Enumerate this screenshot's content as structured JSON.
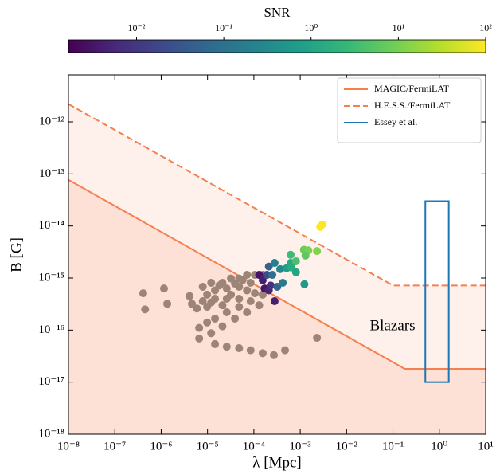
{
  "chart_data": {
    "type": "scatter",
    "xlabel": "λ [Mpc]",
    "ylabel": "B [G]",
    "xscale": "log",
    "yscale": "log",
    "xlim": [
      1e-08,
      10
    ],
    "ylim": [
      1e-18,
      8e-12
    ],
    "xticks": [
      {
        "value": 1e-08,
        "label": "10⁻⁸"
      },
      {
        "value": 1e-07,
        "label": "10⁻⁷"
      },
      {
        "value": 1e-06,
        "label": "10⁻⁶"
      },
      {
        "value": 1e-05,
        "label": "10⁻⁵"
      },
      {
        "value": 0.0001,
        "label": "10⁻⁴"
      },
      {
        "value": 0.001,
        "label": "10⁻³"
      },
      {
        "value": 0.01,
        "label": "10⁻²"
      },
      {
        "value": 0.1,
        "label": "10⁻¹"
      },
      {
        "value": 1,
        "label": "10⁰"
      },
      {
        "value": 10,
        "label": "10¹"
      }
    ],
    "yticks": [
      {
        "value": 1e-18,
        "label": "10⁻¹⁸"
      },
      {
        "value": 1e-17,
        "label": "10⁻¹⁷"
      },
      {
        "value": 1e-16,
        "label": "10⁻¹⁶"
      },
      {
        "value": 1e-15,
        "label": "10⁻¹⁵"
      },
      {
        "value": 1e-14,
        "label": "10⁻¹⁴"
      },
      {
        "value": 1e-13,
        "label": "10⁻¹³"
      },
      {
        "value": 1e-12,
        "label": "10⁻¹²"
      }
    ],
    "colorbar": {
      "label": "SNR",
      "colormap": "viridis",
      "scale": "log",
      "clim": [
        0.00166,
        100
      ],
      "ticks": [
        {
          "value": 0.01,
          "label": "10⁻²"
        },
        {
          "value": 0.1,
          "label": "10⁻¹"
        },
        {
          "value": 1,
          "label": "10⁰"
        },
        {
          "value": 10,
          "label": "10¹"
        },
        {
          "value": 100,
          "label": "10²"
        }
      ]
    },
    "legend": "upper right",
    "lines": [
      {
        "name": "MAGIC/FermiLAT",
        "color": "#f47f4f",
        "dash": "solid",
        "fill": "#fde1d7",
        "x": [
          1e-08,
          0.18,
          10
        ],
        "y": [
          7.7e-14,
          1.8e-17,
          1.8e-17
        ]
      },
      {
        "name": "H.E.S.S./FermiLAT",
        "color": "#f47f4f",
        "dash": "dashed",
        "fill": "#fef0eb",
        "x": [
          1e-08,
          0.1,
          10
        ],
        "y": [
          2.2e-12,
          7.2e-16,
          7.2e-16
        ]
      }
    ],
    "rect": {
      "name": "Essey et al.",
      "color": "#1f77b4",
      "x": [
        0.5,
        1.6
      ],
      "y": [
        1e-17,
        3e-14
      ]
    },
    "annotation": "Blazars",
    "series": [
      {
        "color": "#9c8477",
        "x": [
          4.1e-07,
          1.15e-06,
          4.5e-07,
          1.35e-06,
          4.1e-06,
          4.6e-06,
          5.9e-06,
          0.0023,
          0.00047,
          0.00027,
          7.9e-06,
          1.2e-05,
          2.1e-05,
          3.2e-05,
          4.8e-05,
          7.1e-05,
          0.000105,
          0.000155,
          9.8e-06,
          1.45e-05,
          2.6e-05,
          4.8e-05,
          8.5e-05,
          7.9e-06,
          1.45e-05,
          3.2e-05,
          7.1e-05,
          9.8e-06,
          2.1e-05,
          4.8e-05,
          0.000105,
          6.6e-06,
          9.8e-06,
          1.45e-05,
          2.6e-05,
          4.8e-05,
          8.5e-05,
          0.000155,
          6.6e-06,
          1.2e-05,
          2.1e-05,
          3.9e-05,
          7.1e-05,
          0.00013,
          1.45e-05,
          2.6e-05,
          4.8e-05,
          8.5e-05,
          0.000155,
          1.8e-05,
          3.9e-05,
          5.7e-05,
          1.2e-05,
          2.6e-05
        ],
        "y": [
          5.1e-16,
          6.3e-16,
          2.5e-16,
          3.2e-16,
          4.5e-16,
          3.2e-16,
          2.6e-16,
          7.1e-17,
          4.1e-17,
          3.3e-17,
          6.8e-16,
          8.1e-16,
          8.1e-16,
          9.8e-16,
          9.8e-16,
          1.15e-15,
          1.15e-15,
          1.15e-15,
          4.8e-16,
          5.8e-16,
          6.3e-16,
          6.8e-16,
          8.1e-16,
          3.6e-16,
          4e-16,
          4.8e-16,
          5.8e-16,
          2.8e-16,
          3e-16,
          4e-16,
          5.1e-16,
          1.1e-16,
          1.4e-16,
          1.66e-16,
          2.2e-16,
          2.8e-16,
          3.6e-16,
          4.8e-16,
          6.9e-17,
          8.7e-17,
          1.18e-16,
          1.66e-16,
          2.2e-16,
          3e-16,
          5.4e-17,
          4.8e-17,
          4.5e-17,
          4.1e-17,
          3.6e-17,
          7.2e-16,
          7.8e-16,
          9.1e-16,
          3.4e-16,
          4e-16
        ]
      },
      {
        "x": [
          0.00013,
          0.000155,
          0.00017,
          0.00021,
          0.00023,
          0.00028,
          0.00019,
          0.00021,
          0.00025,
          0.00028,
          0.00032,
          0.00037,
          0.00042,
          0.00051,
          0.00062,
          0.00065,
          0.00081,
          0.00123,
          0.00062,
          0.00081,
          0.0012,
          0.0015,
          0.0013,
          0.0023,
          0.0027,
          0.003
        ],
        "y": [
          1.15e-15,
          9.1e-16,
          6.3e-16,
          5.8e-16,
          7.2e-16,
          3.6e-16,
          1.15e-15,
          1.66e-15,
          1.15e-15,
          1.95e-15,
          6.8e-16,
          1.48e-15,
          8.1e-16,
          1.55e-15,
          1.95e-15,
          1.6e-15,
          1.29e-15,
          7.6e-16,
          2.8e-15,
          2.1e-15,
          3.5e-15,
          3.4e-15,
          2.7e-15,
          3.3e-15,
          9.6e-15,
          1.07e-14
        ],
        "snr": [
          0.003,
          0.004,
          0.003,
          0.005,
          0.008,
          0.004,
          0.02,
          0.05,
          0.1,
          0.2,
          0.06,
          0.3,
          0.15,
          0.8,
          1.2,
          1.5,
          1.0,
          0.6,
          3,
          4,
          8,
          10,
          6,
          12,
          100,
          100
        ]
      }
    ]
  }
}
